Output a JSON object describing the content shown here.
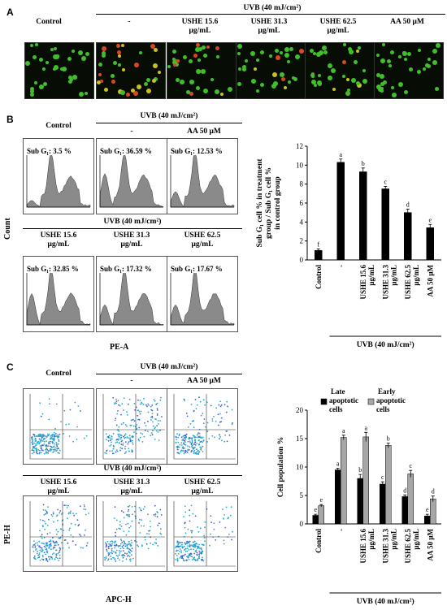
{
  "panelA": {
    "letter": "A",
    "control": "Control",
    "uvb": "UVB (40 mJ/cm²)",
    "conditions": [
      "-",
      "USHE 15.6\nμg/mL",
      "USHE 31.3\nμg/mL",
      "USHE 62.5\nμg/mL",
      "AA 50 μM"
    ]
  },
  "panelB": {
    "letter": "B",
    "control": "Control",
    "uvb": "UVB (40 mJ/cm²)",
    "dash": "-",
    "aa": "AA 50 μM",
    "row2": [
      "USHE 15.6\nμg/mL",
      "USHE 31.3\nμg/mL",
      "USHE 62.5\nμg/mL"
    ],
    "subg_row1": [
      "Sub G₁: 3.5 %",
      "Sub G₁: 36.59 %",
      "Sub G₁: 12.53 %"
    ],
    "subg_row2": [
      "Sub G₁: 32.85 %",
      "Sub G₁: 17.32 %",
      "Sub G₁: 17.67 %"
    ],
    "ylabel_count": "Count",
    "xlabel": "PE-A"
  },
  "panelC": {
    "letter": "C",
    "control": "Control",
    "uvb": "UVB (40 mJ/cm²)",
    "dash": "-",
    "aa": "AA 50 μM",
    "row2": [
      "USHE 15.6\nμg/mL",
      "USHE 31.3\nμg/mL",
      "USHE 62.5\nμg/mL"
    ],
    "ylabel": "PE-H",
    "xlabel": "APC-H"
  },
  "chart_data": [
    {
      "type": "bar",
      "categories": [
        "Control",
        "-",
        "USHE 15.6 μg/mL",
        "USHE 31.3 μg/mL",
        "USHE 62.5 μg/mL",
        "AA 50 μM"
      ],
      "values": [
        1.0,
        10.3,
        9.3,
        7.5,
        5.0,
        3.4
      ],
      "errors": [
        0.15,
        0.35,
        0.4,
        0.25,
        0.35,
        0.35
      ],
      "letters": [
        "f",
        "a",
        "b",
        "c",
        "d",
        "e"
      ],
      "ylabel": "Sub G₁ cell % in treatment group / Sub G₁ cell % in control group",
      "xgroup_label": "UVB (40 mJ/cm²)",
      "ylim": [
        0,
        12
      ],
      "yticks": [
        0,
        2,
        4,
        6,
        8,
        10,
        12
      ],
      "color": "#000000"
    },
    {
      "type": "bar",
      "categories": [
        "Control",
        "-",
        "USHE 15.6 μg/mL",
        "USHE 31.3 μg/mL",
        "USHE 62.5 μg/mL",
        "AA 50 μM"
      ],
      "series": [
        {
          "name": "Late apoptotic cells",
          "values": [
            1.5,
            9.5,
            8.0,
            7.0,
            4.8,
            1.4
          ],
          "errors": [
            0.2,
            0.3,
            0.7,
            0.4,
            0.3,
            0.3
          ],
          "letters": [
            "e",
            "a",
            "b",
            "c",
            "d",
            "e"
          ],
          "color": "#000000"
        },
        {
          "name": "Early apoptotic cells",
          "values": [
            3.2,
            15.2,
            15.3,
            13.8,
            8.8,
            4.4
          ],
          "errors": [
            0.2,
            0.4,
            0.8,
            0.4,
            0.6,
            0.5
          ],
          "letters": [
            "e",
            "a",
            "a",
            "b",
            "c",
            "d"
          ],
          "color": "#a6a6a6"
        }
      ],
      "ylabel": "Cell population %",
      "xgroup_label": "UVB (40 mJ/cm²)",
      "ylim": [
        0,
        20
      ],
      "yticks": [
        0,
        5,
        10,
        15,
        20
      ]
    }
  ]
}
